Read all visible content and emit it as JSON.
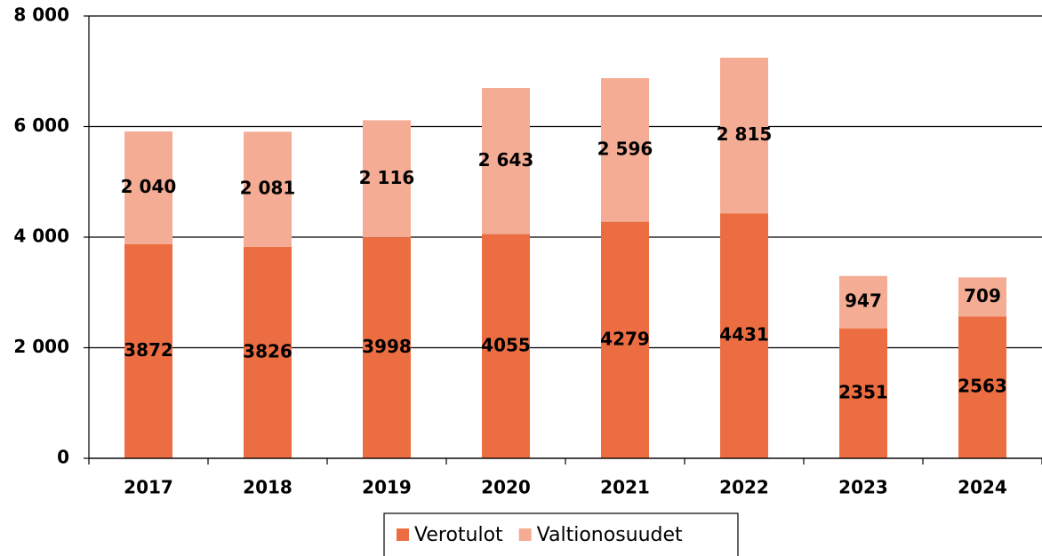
{
  "chart_data": {
    "type": "stacked_bar",
    "categories": [
      "2017",
      "2018",
      "2019",
      "2020",
      "2021",
      "2022",
      "2023",
      "2024"
    ],
    "series": [
      {
        "name": "Verotulot",
        "color": "#ed6d43",
        "values": [
          3872,
          3826,
          3998,
          4055,
          4279,
          4431,
          2351,
          2563
        ]
      },
      {
        "name": "Valtionosuudet",
        "color": "#f4ac94",
        "values": [
          2040,
          2081,
          2116,
          2643,
          2596,
          2815,
          947,
          709
        ],
        "value_labels": [
          "2 040",
          "2 081",
          "2 116",
          "2 643",
          "2 596",
          "2 815",
          "947",
          "709"
        ]
      }
    ],
    "ylim": [
      0,
      8000
    ],
    "yticks": [
      0,
      {
        "value": 2000,
        "label": "2 000"
      },
      {
        "value": 4000,
        "label": "4 000"
      },
      {
        "value": 6000,
        "label": "6 000"
      },
      {
        "value": 8000,
        "label": "8 000"
      }
    ],
    "grid": true,
    "legend": "bottom"
  }
}
